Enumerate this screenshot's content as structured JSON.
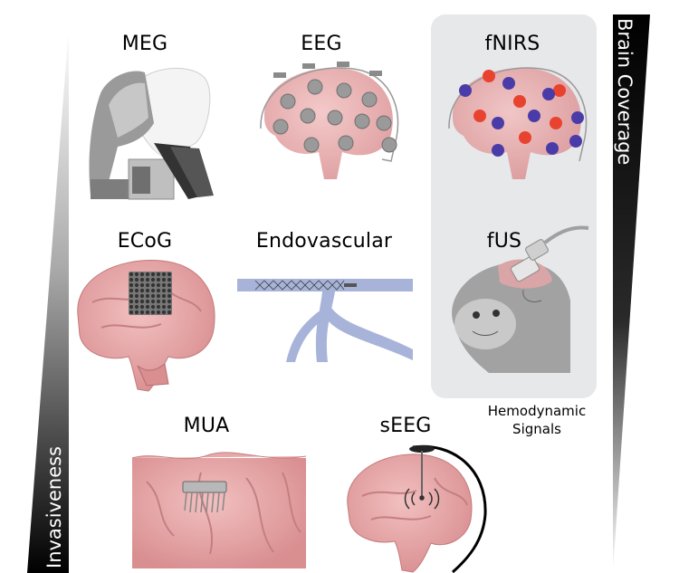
{
  "axes": {
    "invasiveness": "Invasiveness",
    "brain_coverage": "Brain Coverage"
  },
  "modalities": {
    "meg": "MEG",
    "eeg": "EEG",
    "fnirs": "fNIRS",
    "ecog": "ECoG",
    "endovascular": "Endovascular",
    "fus": "fUS",
    "mua": "MUA",
    "seeg": "sEEG"
  },
  "hemodynamic": {
    "line1": "Hemodynamic",
    "line2": "Signals"
  },
  "colors": {
    "brain_pink": "#e8a7a8",
    "hemo_panel": "#e7e8ea",
    "fnirs_red": "#e8432e",
    "fnirs_blue": "#4a3ca8",
    "vessel": "#a7b3d8",
    "electrode_gray": "#9a9a9a"
  }
}
